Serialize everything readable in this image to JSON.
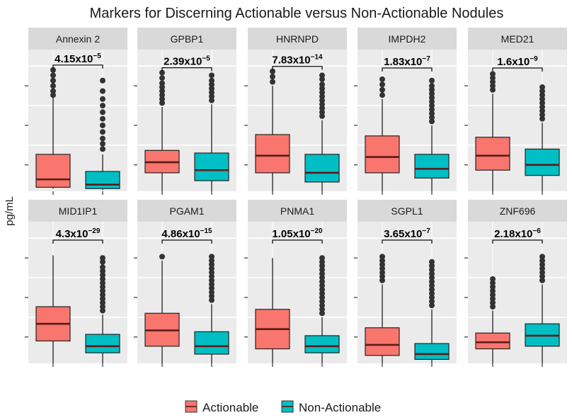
{
  "chart_data": {
    "type": "box",
    "title": "Markers for Discerning Actionable versus Non-Actionable Nodules",
    "ylabel": "pg/mL",
    "groups": [
      "Actionable",
      "Non-Actionable"
    ],
    "colors": {
      "Actionable": "#f8766d",
      "Non-Actionable": "#00bfc4",
      "panel_bg": "#ebebeb",
      "strip_bg": "#d9d9d9"
    },
    "legend_position": "bottom",
    "ylim": [
      0,
      100
    ],
    "panels": [
      {
        "marker": "Annexin 2",
        "pvalue": {
          "base": "4.15x10",
          "exp": "−5"
        },
        "Actionable": {
          "whisker_low": 2,
          "q1": 3,
          "median": 9,
          "q3": 28,
          "whisker_high": 71,
          "outliers": [
            73,
            76,
            80,
            84,
            88,
            92
          ]
        },
        "Non-Actionable": {
          "whisker_low": 1,
          "q1": 2,
          "median": 5,
          "q3": 15,
          "whisker_high": 28,
          "outliers": [
            32,
            36,
            40,
            45,
            50,
            55,
            60,
            65,
            70,
            76,
            84
          ]
        }
      },
      {
        "marker": "GPBP1",
        "pvalue": {
          "base": "2.39x10",
          "exp": "−5"
        },
        "Actionable": {
          "whisker_low": 0,
          "q1": 14,
          "median": 22,
          "q3": 31,
          "whisker_high": 64,
          "outliers": [
            67,
            70,
            73,
            76,
            79,
            82,
            86,
            90
          ]
        },
        "Non-Actionable": {
          "whisker_low": 0,
          "q1": 8,
          "median": 16,
          "q3": 29,
          "whisker_high": 66,
          "outliers": [
            69,
            72,
            75,
            78,
            81,
            84,
            88
          ]
        }
      },
      {
        "marker": "HNRNPD",
        "pvalue": {
          "base": "7.83x10",
          "exp": "−14"
        },
        "Actionable": {
          "whisker_low": 0,
          "q1": 14,
          "median": 27,
          "q3": 43,
          "whisker_high": 80,
          "outliers": [
            83,
            87,
            91
          ]
        },
        "Non-Actionable": {
          "whisker_low": 0,
          "q1": 7,
          "median": 14,
          "q3": 28,
          "whisker_high": 54,
          "outliers": [
            57,
            60,
            63,
            66,
            69,
            72,
            75,
            78,
            81,
            85,
            88
          ]
        }
      },
      {
        "marker": "IMPDH2",
        "pvalue": {
          "base": "1.83x10",
          "exp": "−7"
        },
        "Actionable": {
          "whisker_low": 0,
          "q1": 14,
          "median": 26,
          "q3": 42,
          "whisker_high": 70,
          "outliers": [
            73,
            77,
            81,
            85
          ]
        },
        "Non-Actionable": {
          "whisker_low": 0,
          "q1": 10,
          "median": 17,
          "q3": 28,
          "whisker_high": 50,
          "outliers": [
            53,
            56,
            59,
            62,
            65,
            68,
            71,
            74,
            77,
            80,
            84
          ]
        }
      },
      {
        "marker": "MED21",
        "pvalue": {
          "base": "1.6x10",
          "exp": "−9"
        },
        "Actionable": {
          "whisker_low": 0,
          "q1": 16,
          "median": 27,
          "q3": 41,
          "whisker_high": 74,
          "outliers": [
            77,
            80,
            83,
            86,
            89
          ]
        },
        "Non-Actionable": {
          "whisker_low": 0,
          "q1": 12,
          "median": 20,
          "q3": 32,
          "whisker_high": 52,
          "outliers": [
            55,
            58,
            61,
            64,
            67,
            70,
            73,
            76,
            79
          ]
        }
      },
      {
        "marker": "MID1IP1",
        "pvalue": {
          "base": "4.3x10",
          "exp": "−29"
        },
        "Actionable": {
          "whisker_low": 0,
          "q1": 17,
          "median": 30,
          "q3": 43,
          "whisker_high": 82,
          "outliers": []
        },
        "Non-Actionable": {
          "whisker_low": 0,
          "q1": 8,
          "median": 13,
          "q3": 22,
          "whisker_high": 37,
          "outliers": [
            40,
            43,
            46,
            49,
            52,
            55,
            58,
            61,
            64,
            67,
            70,
            73,
            77,
            80
          ]
        }
      },
      {
        "marker": "PGAM1",
        "pvalue": {
          "base": "4.86x10",
          "exp": "−15"
        },
        "Actionable": {
          "whisker_low": 0,
          "q1": 13,
          "median": 25,
          "q3": 38,
          "whisker_high": 78,
          "outliers": [
            81
          ]
        },
        "Non-Actionable": {
          "whisker_low": 0,
          "q1": 7,
          "median": 13,
          "q3": 24,
          "whisker_high": 45,
          "outliers": [
            48,
            51,
            54,
            57,
            60,
            63,
            66,
            69,
            72,
            75,
            78,
            81
          ]
        }
      },
      {
        "marker": "PNMA1",
        "pvalue": {
          "base": "1.05x10",
          "exp": "−20"
        },
        "Actionable": {
          "whisker_low": 0,
          "q1": 11,
          "median": 26,
          "q3": 41,
          "whisker_high": 80,
          "outliers": []
        },
        "Non-Actionable": {
          "whisker_low": 0,
          "q1": 8,
          "median": 13,
          "q3": 21,
          "whisker_high": 35,
          "outliers": [
            38,
            41,
            44,
            47,
            50,
            53,
            56,
            59,
            62,
            65,
            68,
            71,
            74,
            77,
            80
          ]
        }
      },
      {
        "marker": "SGPL1",
        "pvalue": {
          "base": "3.65x10",
          "exp": "−7"
        },
        "Actionable": {
          "whisker_low": 0,
          "q1": 6,
          "median": 14,
          "q3": 27,
          "whisker_high": 60,
          "outliers": [
            63,
            66,
            69,
            72,
            75,
            78,
            81
          ]
        },
        "Non-Actionable": {
          "whisker_low": 0,
          "q1": 3,
          "median": 7,
          "q3": 15,
          "whisker_high": 41,
          "outliers": [
            44,
            47,
            50,
            53,
            56,
            59,
            62,
            65,
            68,
            71,
            74,
            77
          ]
        }
      },
      {
        "marker": "ZNF696",
        "pvalue": {
          "base": "2.18x10",
          "exp": "−6"
        },
        "Actionable": {
          "whisker_low": 0,
          "q1": 11,
          "median": 16,
          "q3": 23,
          "whisker_high": 40,
          "outliers": [
            43,
            46,
            49,
            52,
            55,
            58,
            61,
            64
          ]
        },
        "Non-Actionable": {
          "whisker_low": 0,
          "q1": 13,
          "median": 21,
          "q3": 30,
          "whisker_high": 60,
          "outliers": [
            63,
            66,
            69,
            72,
            75,
            78,
            81
          ]
        }
      }
    ]
  }
}
